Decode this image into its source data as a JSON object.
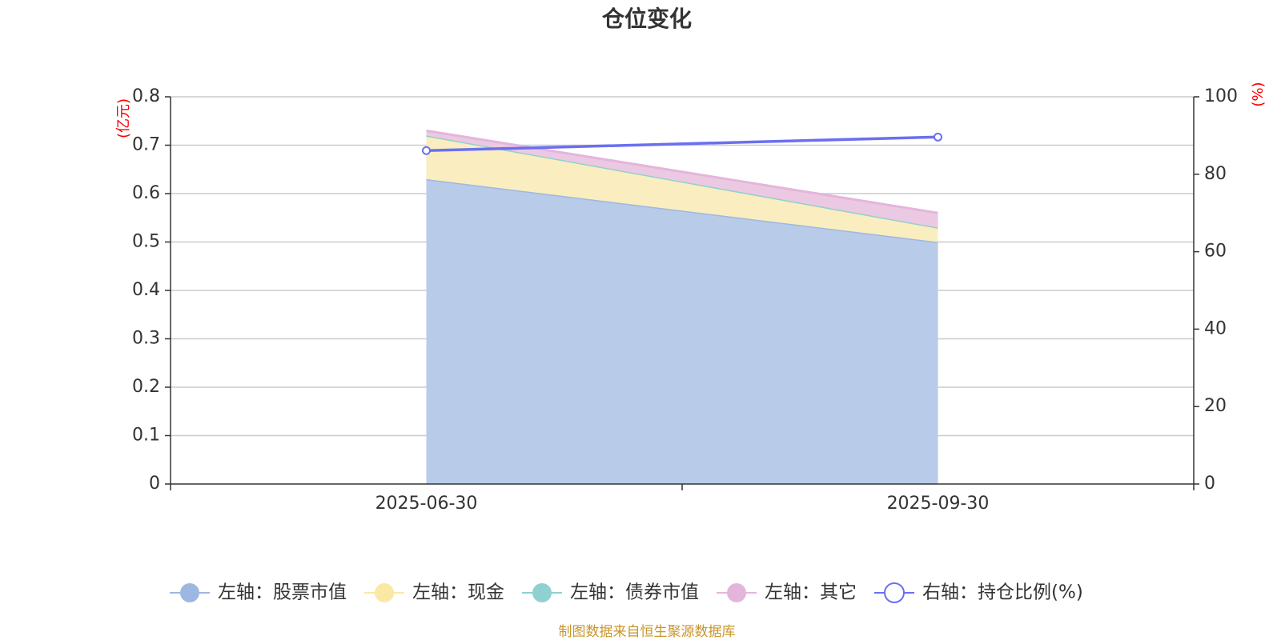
{
  "chart_data": {
    "type": "area",
    "title": "仓位变化",
    "categories": [
      "2025-06-30",
      "2025-09-30"
    ],
    "left_axis": {
      "unit": "(亿元)",
      "min": 0,
      "max": 0.8,
      "ticks": [
        "0",
        "0.1",
        "0.2",
        "0.3",
        "0.4",
        "0.5",
        "0.6",
        "0.7",
        "0.8"
      ]
    },
    "right_axis": {
      "unit": "(%)",
      "min": 0,
      "max": 100,
      "ticks": [
        "0",
        "20",
        "40",
        "60",
        "80",
        "100"
      ]
    },
    "stacked": true,
    "grid": true,
    "legend_position": "bottom",
    "series": [
      {
        "name": "左轴：股票市值",
        "axis": "left",
        "kind": "area",
        "values": [
          0.63,
          0.5
        ],
        "color": "#9db8e0",
        "fill": "#b8cbe9"
      },
      {
        "name": "左轴：现金",
        "axis": "left",
        "kind": "area",
        "values": [
          0.09,
          0.03
        ],
        "color": "#fbe8a4",
        "fill": "#faedbf"
      },
      {
        "name": "左轴：债券市值",
        "axis": "left",
        "kind": "area",
        "values": [
          0.0,
          0.0
        ],
        "color": "#8fd1d1",
        "fill": "#bfe3e3"
      },
      {
        "name": "左轴：其它",
        "axis": "left",
        "kind": "area",
        "values": [
          0.01,
          0.03
        ],
        "color": "#e4b5dc",
        "fill": "#ecc9e3"
      },
      {
        "name": "右轴：持仓比例(%)",
        "axis": "right",
        "kind": "line",
        "values": [
          86.1,
          89.6
        ],
        "color": "#6b6ff0"
      }
    ]
  },
  "source_note": "制图数据来自恒生聚源数据库"
}
